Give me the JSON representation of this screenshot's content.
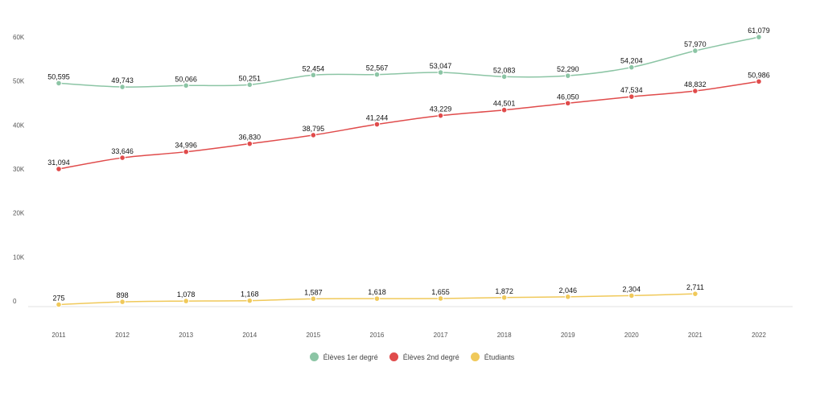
{
  "chart_data": {
    "type": "line",
    "categories": [
      "2011",
      "2012",
      "2013",
      "2014",
      "2015",
      "2016",
      "2017",
      "2018",
      "2019",
      "2020",
      "2021",
      "2022"
    ],
    "ylim": [
      0,
      60000
    ],
    "yticks": [
      0,
      10000,
      20000,
      30000,
      40000,
      50000,
      60000
    ],
    "ytick_labels": [
      "0",
      "10K",
      "20K",
      "30K",
      "40K",
      "50K",
      "60K"
    ],
    "grid": false,
    "legend": "bottom",
    "series": [
      {
        "name": "Élèves 1er degré",
        "color": "#8cc5a5",
        "values": [
          50595,
          49743,
          50066,
          50251,
          52454,
          52567,
          53047,
          52083,
          52290,
          54204,
          57970,
          61079
        ]
      },
      {
        "name": "Élèves 2nd degré",
        "color": "#e04b4b",
        "values": [
          31094,
          33646,
          34996,
          36830,
          38795,
          41244,
          43229,
          44501,
          46050,
          47534,
          48832,
          50986
        ]
      },
      {
        "name": "Étudiants",
        "color": "#f0c95a",
        "values": [
          275,
          898,
          1078,
          1168,
          1587,
          1618,
          1655,
          1872,
          2046,
          2304,
          2711,
          null
        ]
      }
    ]
  }
}
